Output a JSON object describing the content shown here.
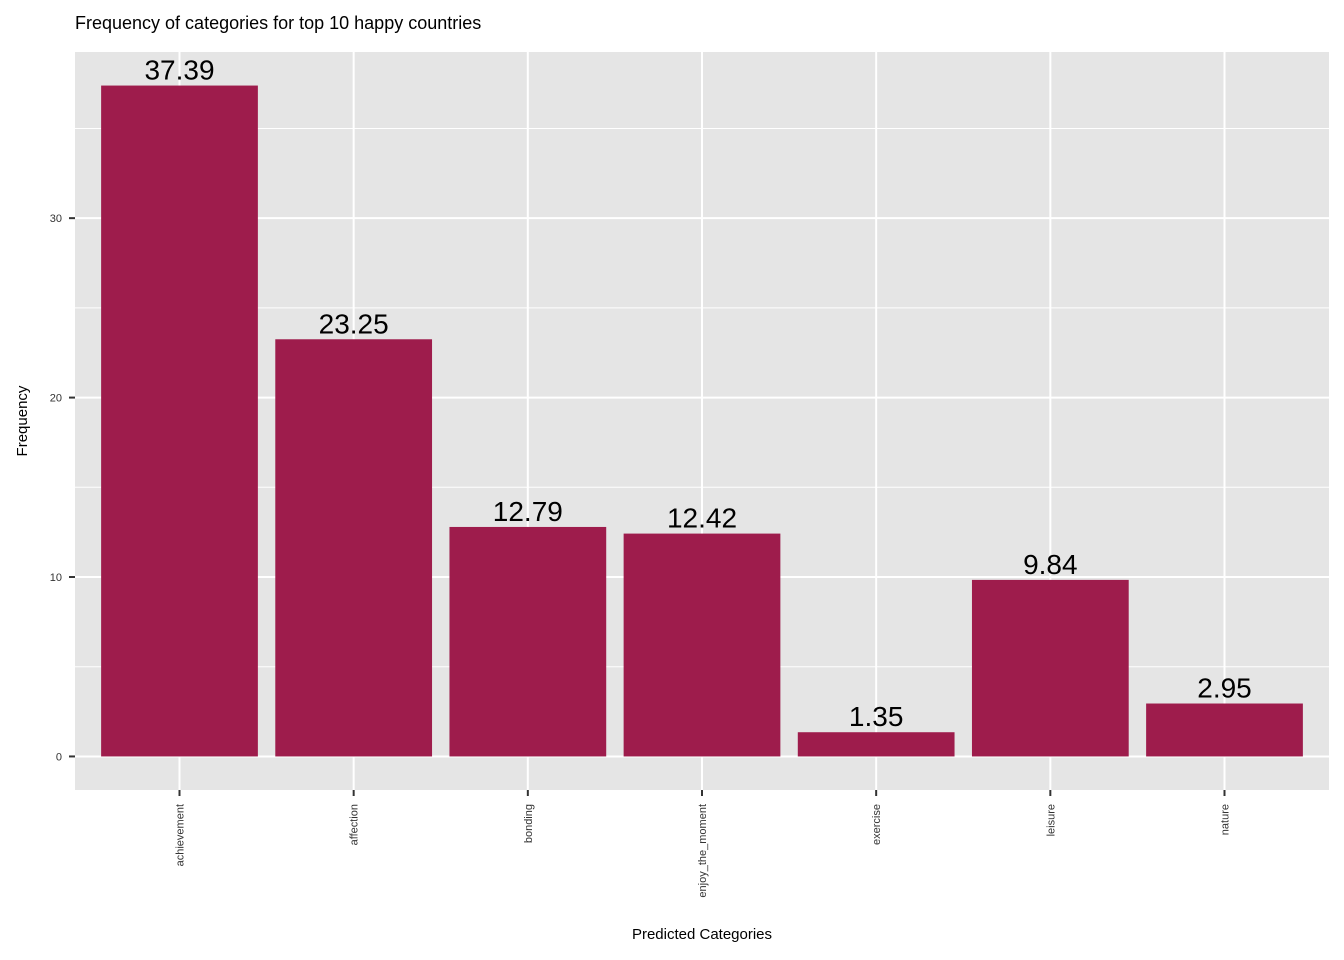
{
  "chart_data": {
    "type": "bar",
    "title": "Frequency of categories for top 10 happy countries",
    "xlabel": "Predicted Categories",
    "ylabel": "Frequency",
    "categories": [
      "achievement",
      "affection",
      "bonding",
      "enjoy_the_moment",
      "exercise",
      "leisure",
      "nature"
    ],
    "values": [
      37.39,
      23.25,
      12.79,
      12.42,
      1.35,
      9.84,
      2.95
    ],
    "data_labels": [
      "37.39",
      "23.25",
      "12.79",
      "12.42",
      "1.35",
      "9.84",
      "2.95"
    ],
    "y_ticks": [
      0,
      10,
      20,
      30
    ],
    "y_tick_labels": [
      "0",
      "10",
      "20",
      "30"
    ],
    "ylim": [
      -1.87,
      39.26
    ],
    "grid": true,
    "legend": "none",
    "bar_color": "#9e1c4c",
    "panel_background": "#e5e5e5",
    "grid_color": "#ffffff"
  }
}
